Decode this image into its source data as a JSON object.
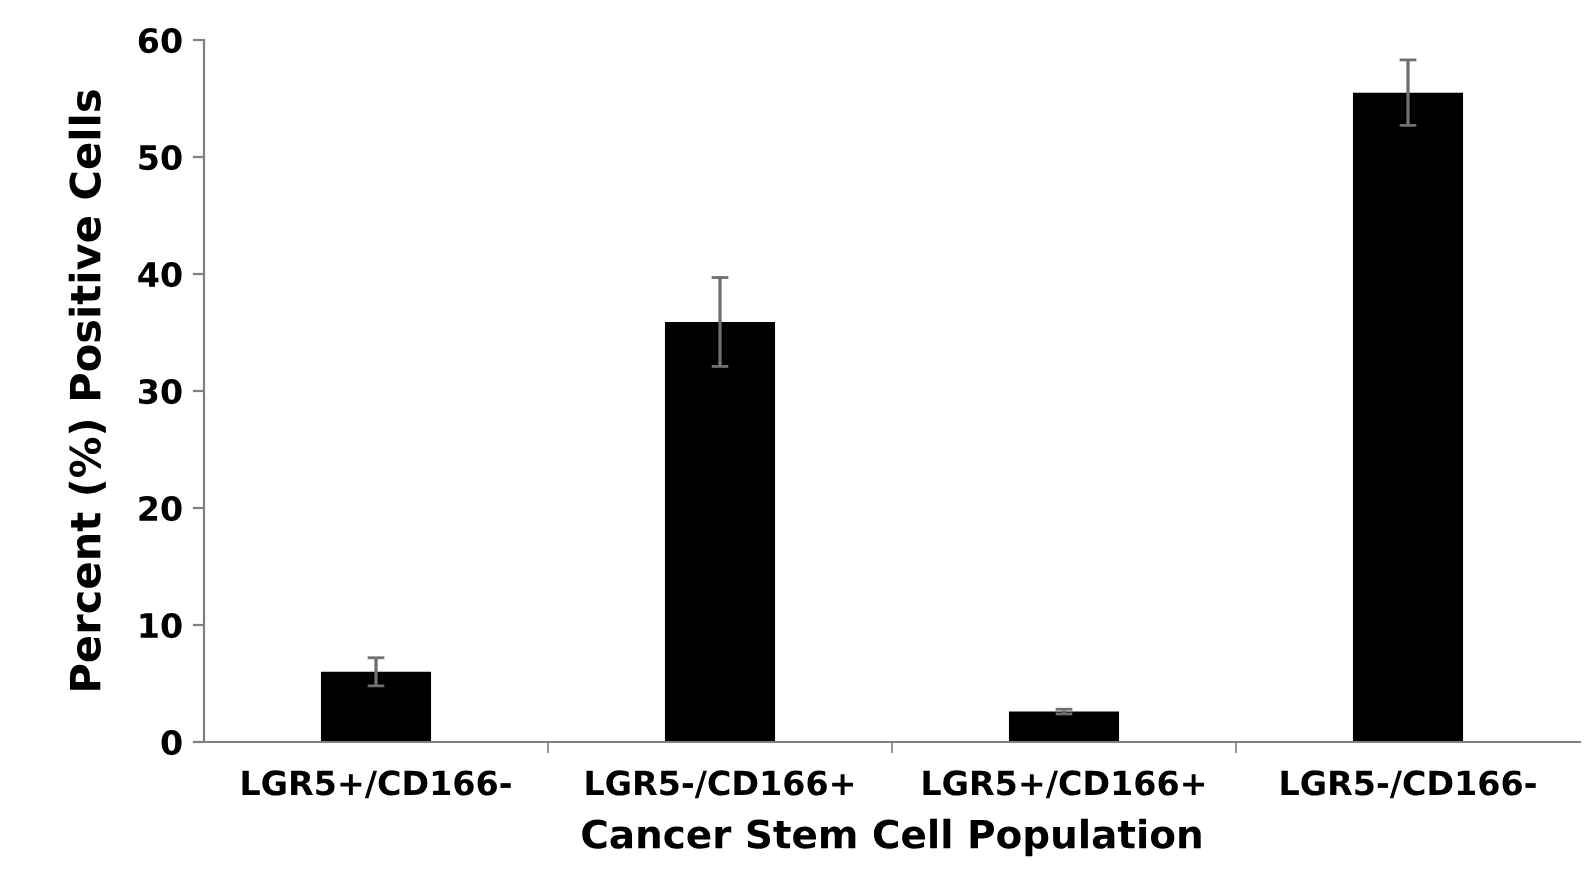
{
  "chart_data": {
    "type": "bar",
    "xlabel": "Cancer Stem Cell Population",
    "ylabel": "Percent (%) Positive Cells",
    "categories": [
      "LGR5+/CD166-",
      "LGR5-/CD166+",
      "LGR5+/CD166+",
      "LGR5-/CD166-"
    ],
    "values": [
      6.0,
      35.9,
      2.6,
      55.5
    ],
    "errors": [
      1.2,
      3.8,
      0.2,
      2.8
    ],
    "color": "#000000",
    "ylim": [
      0,
      60
    ],
    "yticks": [
      0,
      10,
      20,
      30,
      40,
      50,
      60
    ],
    "grid": false,
    "legend": false
  }
}
